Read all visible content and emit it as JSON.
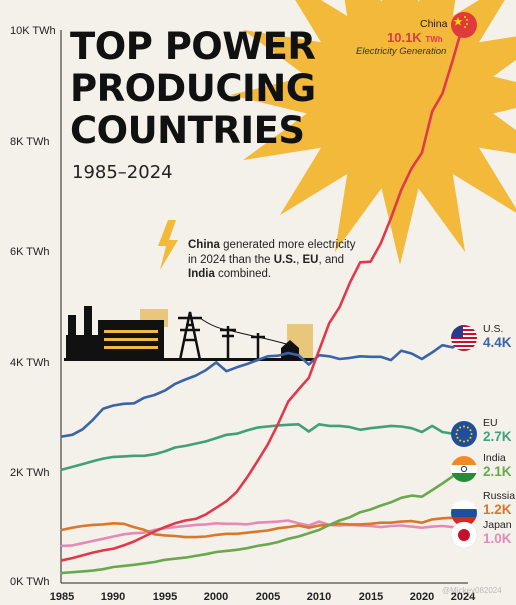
{
  "title": "TOP POWER\nPRODUCING\nCOUNTRIES",
  "subtitle": "1985–2024",
  "annotation": {
    "country": "China",
    "text_1": " generated more electricity in 2024 than the ",
    "us": "U.S.",
    "sep": ", ",
    "eu": "EU",
    "and": ", and ",
    "india": "India",
    "text_2": " combined."
  },
  "china_label": {
    "name": "China",
    "value": "10.1K",
    "unit": "TWh",
    "subtitle": "Electricity Generation"
  },
  "footer": "@Mickey082024",
  "colors": {
    "background": "#f4f1ea",
    "sun": "#f2b93b",
    "China": "#e03a4a",
    "U.S.": "#3b63a8",
    "EU": "#3fa07a",
    "India": "#6aa84f",
    "Russia": "#d9772b",
    "Japan": "#e38bb8"
  },
  "chart_data": {
    "type": "line",
    "title": "TOP POWER PRODUCING COUNTRIES",
    "subtitle": "1985–2024",
    "xlabel": "",
    "ylabel": "",
    "xlim": [
      1985,
      2024
    ],
    "ylim": [
      0,
      10000
    ],
    "x_ticks": [
      "1985",
      "1990",
      "1995",
      "2000",
      "2005",
      "2010",
      "2015",
      "2020",
      "2024"
    ],
    "y_ticks": [
      "0K TWh",
      "2K TWh",
      "4K TWh",
      "6K TWh",
      "8K TWh",
      "10K TWh"
    ],
    "y_tick_values": [
      0,
      2000,
      4000,
      6000,
      8000,
      10000
    ],
    "x": [
      1985,
      1986,
      1987,
      1988,
      1989,
      1990,
      1991,
      1992,
      1993,
      1994,
      1995,
      1996,
      1997,
      1998,
      1999,
      2000,
      2001,
      2002,
      2003,
      2004,
      2005,
      2006,
      2007,
      2008,
      2009,
      2010,
      2011,
      2012,
      2013,
      2014,
      2015,
      2016,
      2017,
      2018,
      2019,
      2020,
      2021,
      2022,
      2023,
      2024
    ],
    "series": [
      {
        "name": "China",
        "end_label": "10.1K",
        "values": [
          410,
          450,
          500,
          550,
          590,
          620,
          680,
          750,
          840,
          930,
          1010,
          1080,
          1130,
          1160,
          1240,
          1360,
          1480,
          1650,
          1910,
          2200,
          2500,
          2870,
          3280,
          3500,
          3710,
          4210,
          4700,
          4990,
          5430,
          5800,
          5810,
          6140,
          6600,
          7110,
          7500,
          7780,
          8530,
          8850,
          9450,
          10100
        ]
      },
      {
        "name": "U.S.",
        "end_label": "4.4K",
        "values": [
          2650,
          2680,
          2780,
          2950,
          3150,
          3210,
          3240,
          3250,
          3350,
          3400,
          3480,
          3600,
          3680,
          3750,
          3850,
          3990,
          3830,
          3900,
          3960,
          4030,
          4100,
          4110,
          4160,
          4120,
          3950,
          4120,
          4100,
          4050,
          4070,
          4100,
          4090,
          4090,
          4030,
          4200,
          4150,
          4050,
          4170,
          4300,
          4260,
          4400
        ]
      },
      {
        "name": "EU",
        "end_label": "2.7K",
        "values": [
          2050,
          2100,
          2150,
          2200,
          2250,
          2280,
          2290,
          2300,
          2300,
          2330,
          2380,
          2450,
          2480,
          2520,
          2560,
          2620,
          2680,
          2700,
          2760,
          2810,
          2830,
          2850,
          2860,
          2870,
          2740,
          2870,
          2840,
          2840,
          2820,
          2770,
          2800,
          2820,
          2840,
          2830,
          2800,
          2730,
          2840,
          2730,
          2700,
          2700
        ]
      },
      {
        "name": "India",
        "end_label": "2.1K",
        "values": [
          180,
          195,
          210,
          225,
          250,
          290,
          310,
          330,
          355,
          380,
          420,
          440,
          460,
          490,
          520,
          560,
          580,
          600,
          630,
          670,
          700,
          740,
          800,
          840,
          900,
          960,
          1050,
          1130,
          1190,
          1280,
          1330,
          1400,
          1460,
          1540,
          1580,
          1560,
          1680,
          1800,
          1930,
          2100
        ]
      },
      {
        "name": "Russia",
        "end_label": "1.2K",
        "values": [
          960,
          1000,
          1030,
          1050,
          1060,
          1080,
          1070,
          1010,
          960,
          880,
          860,
          850,
          830,
          830,
          840,
          870,
          890,
          890,
          910,
          930,
          950,
          990,
          1010,
          1040,
          1000,
          1040,
          1050,
          1070,
          1060,
          1060,
          1070,
          1090,
          1090,
          1110,
          1120,
          1090,
          1150,
          1170,
          1180,
          1200
        ]
      },
      {
        "name": "Japan",
        "end_label": "1.0K",
        "values": [
          670,
          680,
          720,
          760,
          800,
          840,
          880,
          900,
          910,
          960,
          990,
          1010,
          1030,
          1050,
          1060,
          1080,
          1070,
          1070,
          1060,
          1090,
          1100,
          1110,
          1130,
          1080,
          1040,
          1110,
          1050,
          1040,
          1050,
          1040,
          1030,
          1010,
          1030,
          1040,
          1020,
          1000,
          1020,
          1030,
          1010,
          1000
        ]
      }
    ],
    "legend": "right-side end labels",
    "grid": false
  }
}
